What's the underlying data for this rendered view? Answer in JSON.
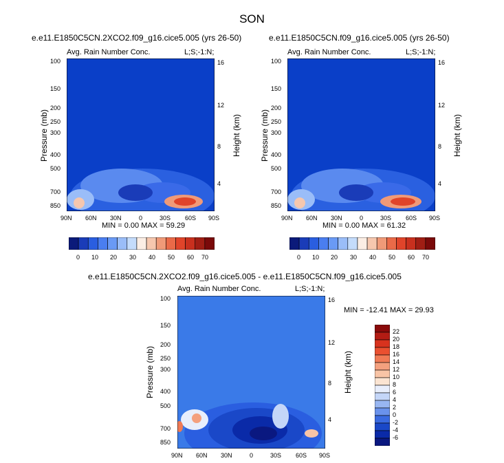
{
  "figure": {
    "title": "SON"
  },
  "chart_data": [
    {
      "type": "heatmap",
      "title": "e.e11.E1850C5CN.2XCO2.f09_g16.cice5.005 (yrs 26-50)",
      "subtitle_left": "Avg. Rain Number Conc.",
      "subtitle_right": "L;S;-1:N;",
      "ylabel": "Pressure (mb)",
      "ylabel_right": "Height (km)",
      "x_ticks": [
        "90N",
        "60N",
        "30N",
        "0",
        "30S",
        "60S",
        "90S"
      ],
      "y_ticks": [
        "100",
        "150",
        "200",
        "250",
        "300",
        "400",
        "500",
        "700",
        "850"
      ],
      "y2_ticks": [
        "16",
        "12",
        "8",
        "4"
      ],
      "min_label": "MIN =",
      "min_value": "0.00",
      "max_label": "MAX =",
      "max_value": "59.29",
      "colorbar_labels": [
        "0",
        "10",
        "20",
        "30",
        "40",
        "50",
        "60",
        "70"
      ]
    },
    {
      "type": "heatmap",
      "title": "e.e11.E1850C5CN.f09_g16.cice5.005 (yrs 26-50)",
      "subtitle_left": "Avg. Rain Number Conc.",
      "subtitle_right": "L;S;-1:N;",
      "ylabel": "Pressure (mb)",
      "ylabel_right": "Height (km)",
      "x_ticks": [
        "90N",
        "60N",
        "30N",
        "0",
        "30S",
        "60S",
        "90S"
      ],
      "y_ticks": [
        "100",
        "150",
        "200",
        "250",
        "300",
        "400",
        "500",
        "700",
        "850"
      ],
      "y2_ticks": [
        "16",
        "12",
        "8",
        "4"
      ],
      "min_label": "MIN =",
      "min_value": "0.00",
      "max_label": "MAX =",
      "max_value": "61.32",
      "colorbar_labels": [
        "0",
        "10",
        "20",
        "30",
        "40",
        "50",
        "60",
        "70"
      ]
    },
    {
      "type": "heatmap",
      "title": "e.e11.E1850C5CN.2XCO2.f09_g16.cice5.005 - e.e11.E1850C5CN.f09_g16.cice5.005",
      "subtitle_left": "Avg. Rain Number Conc.",
      "subtitle_right": "L;S;-1:N;",
      "ylabel": "Pressure (mb)",
      "ylabel_right": "Height (km)",
      "x_ticks": [
        "90N",
        "60N",
        "30N",
        "0",
        "30S",
        "60S",
        "90S"
      ],
      "y_ticks": [
        "100",
        "150",
        "200",
        "250",
        "300",
        "400",
        "500",
        "700",
        "850"
      ],
      "y2_ticks": [
        "16",
        "12",
        "8",
        "4"
      ],
      "minmax": "MIN = -12.41  MAX =  29.93",
      "colorbar_labels": [
        "22",
        "20",
        "18",
        "16",
        "14",
        "12",
        "10",
        "8",
        "6",
        "4",
        "2",
        "0",
        "-2",
        "-4",
        "-6"
      ]
    }
  ],
  "colors": {
    "plot_background": "#0a3fc8",
    "abs_colorbar": [
      "#0b1a7a",
      "#1a3cb8",
      "#2a5ee0",
      "#4a7ef0",
      "#6a9af5",
      "#9abdf8",
      "#c4dcfb",
      "#fbeee4",
      "#f6c7ae",
      "#f09a78",
      "#ea6a48",
      "#e0442a",
      "#c8301e",
      "#a01e14",
      "#7a0a0a"
    ],
    "diff_colorbar": [
      "#8a0a0a",
      "#b31c14",
      "#d8321e",
      "#ea5030",
      "#f07a55",
      "#f4a07e",
      "#f8c4a6",
      "#fbe4d2",
      "#e8eefc",
      "#c4d6f8",
      "#98b6f2",
      "#6a92ec",
      "#3a6ae0",
      "#1a48c8",
      "#0a2aa8",
      "#0a1880"
    ]
  }
}
